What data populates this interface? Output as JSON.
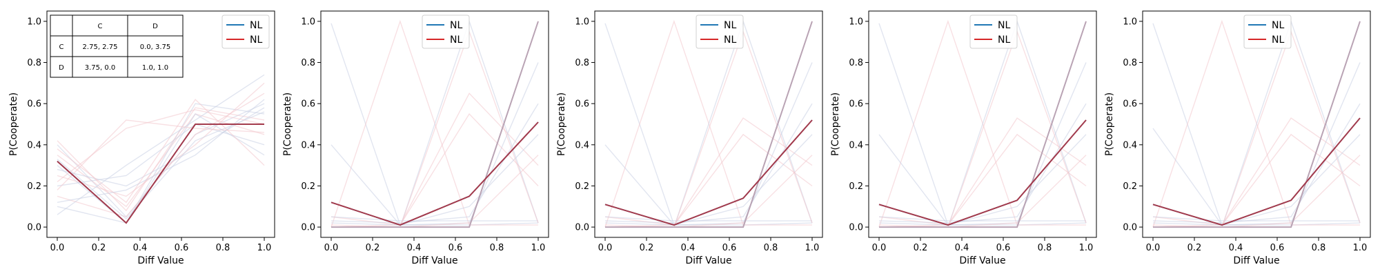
{
  "figure": {
    "xlabel": "Diff Value",
    "ylabel": "P(Cooperate)"
  },
  "colors": {
    "blue": "#1f77b4",
    "red": "#d62728",
    "mix": "#a33a4c",
    "faint_blue": "#c9cfe3",
    "faint_red": "#f2c6cc"
  },
  "payoff_table": {
    "col_headers": [
      "C",
      "D"
    ],
    "rows": [
      {
        "label": "C",
        "cells": [
          "2.75, 2.75",
          "0.0, 3.75"
        ]
      },
      {
        "label": "D",
        "cells": [
          "3.75, 0.0",
          "1.0, 1.0"
        ]
      }
    ]
  },
  "chart_data": [
    {
      "type": "line",
      "xlabel": "Diff Value",
      "ylabel": "P(Cooperate)",
      "xlim": [
        -0.05,
        1.05
      ],
      "ylim": [
        -0.05,
        1.05
      ],
      "xticks": [
        "0.0",
        "0.2",
        "0.4",
        "0.6",
        "0.8",
        "1.0"
      ],
      "yticks": [
        "0.0",
        "0.2",
        "0.4",
        "0.6",
        "0.8",
        "1.0"
      ],
      "legend": [
        "NL",
        "NL"
      ],
      "legend_position": "top-right",
      "x": [
        0.0,
        0.333,
        0.667,
        1.0
      ],
      "series": [
        {
          "name": "NL",
          "color": "blue",
          "values": [
            0.32,
            0.02,
            0.5,
            0.5
          ]
        },
        {
          "name": "NL",
          "color": "red",
          "values": [
            0.32,
            0.02,
            0.5,
            0.5
          ]
        }
      ],
      "faint_traces": [
        [
          0.4,
          0.05,
          0.45,
          0.6
        ],
        [
          0.35,
          0.1,
          0.55,
          0.45
        ],
        [
          0.3,
          0.02,
          0.6,
          0.55
        ],
        [
          0.25,
          0.15,
          0.4,
          0.7
        ],
        [
          0.2,
          0.25,
          0.5,
          0.4
        ],
        [
          0.15,
          0.05,
          0.45,
          0.65
        ],
        [
          0.1,
          0.02,
          0.55,
          0.35
        ],
        [
          0.42,
          0.08,
          0.58,
          0.52
        ],
        [
          0.28,
          0.2,
          0.38,
          0.58
        ],
        [
          0.18,
          0.52,
          0.48,
          0.46
        ],
        [
          0.06,
          0.3,
          0.52,
          0.74
        ],
        [
          0.38,
          0.12,
          0.62,
          0.3
        ],
        [
          0.33,
          0.04,
          0.42,
          0.56
        ],
        [
          0.22,
          0.48,
          0.57,
          0.5
        ],
        [
          0.12,
          0.18,
          0.35,
          0.62
        ]
      ]
    },
    {
      "type": "line",
      "xlabel": "Diff Value",
      "ylabel": "P(Cooperate)",
      "xlim": [
        -0.05,
        1.05
      ],
      "ylim": [
        -0.05,
        1.05
      ],
      "xticks": [
        "0.0",
        "0.2",
        "0.4",
        "0.6",
        "0.8",
        "1.0"
      ],
      "yticks": [
        "0.0",
        "0.2",
        "0.4",
        "0.6",
        "0.8",
        "1.0"
      ],
      "legend": [
        "NL",
        "NL"
      ],
      "legend_position": "top-center",
      "x": [
        0.0,
        0.333,
        0.667,
        1.0
      ],
      "series": [
        {
          "name": "NL",
          "color": "blue",
          "values": [
            0.12,
            0.01,
            0.15,
            0.51
          ]
        },
        {
          "name": "NL",
          "color": "red",
          "values": [
            0.12,
            0.01,
            0.15,
            0.51
          ]
        }
      ],
      "flat_series": [
        0.0,
        0.0,
        0.0,
        1.0
      ],
      "faint_traces": [
        [
          0.99,
          0.01,
          0.01,
          0.02
        ],
        [
          0.0,
          1.0,
          0.01,
          0.01
        ],
        [
          0.0,
          0.0,
          1.0,
          0.02
        ],
        [
          0.0,
          0.0,
          0.0,
          1.0
        ],
        [
          0.4,
          0.01,
          0.02,
          0.8
        ],
        [
          0.05,
          0.01,
          0.65,
          0.3
        ],
        [
          0.03,
          0.02,
          0.05,
          0.6
        ],
        [
          0.0,
          0.01,
          0.55,
          0.2
        ],
        [
          0.02,
          0.01,
          0.1,
          0.45
        ],
        [
          0.01,
          0.0,
          0.02,
          0.35
        ],
        [
          0.05,
          0.03,
          0.03,
          0.03
        ],
        [
          0.0,
          0.0,
          0.95,
          0.02
        ]
      ]
    },
    {
      "type": "line",
      "xlabel": "Diff Value",
      "ylabel": "P(Cooperate)",
      "xlim": [
        -0.05,
        1.05
      ],
      "ylim": [
        -0.05,
        1.05
      ],
      "xticks": [
        "0.0",
        "0.2",
        "0.4",
        "0.6",
        "0.8",
        "1.0"
      ],
      "yticks": [
        "0.0",
        "0.2",
        "0.4",
        "0.6",
        "0.8",
        "1.0"
      ],
      "legend": [
        "NL",
        "NL"
      ],
      "legend_position": "top-center",
      "x": [
        0.0,
        0.333,
        0.667,
        1.0
      ],
      "series": [
        {
          "name": "NL",
          "color": "blue",
          "values": [
            0.11,
            0.01,
            0.14,
            0.52
          ]
        },
        {
          "name": "NL",
          "color": "red",
          "values": [
            0.11,
            0.01,
            0.14,
            0.52
          ]
        }
      ],
      "flat_series": [
        0.0,
        0.0,
        0.0,
        1.0
      ],
      "faint_traces": [
        [
          0.99,
          0.01,
          0.01,
          0.02
        ],
        [
          0.0,
          1.0,
          0.01,
          0.01
        ],
        [
          0.0,
          0.0,
          1.0,
          0.02
        ],
        [
          0.0,
          0.0,
          0.0,
          1.0
        ],
        [
          0.4,
          0.01,
          0.02,
          0.8
        ],
        [
          0.05,
          0.01,
          0.53,
          0.3
        ],
        [
          0.03,
          0.02,
          0.05,
          0.6
        ],
        [
          0.0,
          0.01,
          0.45,
          0.2
        ],
        [
          0.02,
          0.01,
          0.1,
          0.45
        ],
        [
          0.01,
          0.0,
          0.02,
          0.35
        ],
        [
          0.05,
          0.03,
          0.03,
          0.03
        ],
        [
          0.0,
          0.0,
          0.95,
          0.02
        ]
      ]
    },
    {
      "type": "line",
      "xlabel": "Diff Value",
      "ylabel": "P(Cooperate)",
      "xlim": [
        -0.05,
        1.05
      ],
      "ylim": [
        -0.05,
        1.05
      ],
      "xticks": [
        "0.0",
        "0.2",
        "0.4",
        "0.6",
        "0.8",
        "1.0"
      ],
      "yticks": [
        "0.0",
        "0.2",
        "0.4",
        "0.6",
        "0.8",
        "1.0"
      ],
      "legend": [
        "NL",
        "NL"
      ],
      "legend_position": "top-center",
      "x": [
        0.0,
        0.333,
        0.667,
        1.0
      ],
      "series": [
        {
          "name": "NL",
          "color": "blue",
          "values": [
            0.11,
            0.01,
            0.13,
            0.52
          ]
        },
        {
          "name": "NL",
          "color": "red",
          "values": [
            0.11,
            0.01,
            0.13,
            0.52
          ]
        }
      ],
      "flat_series": [
        0.0,
        0.0,
        0.0,
        1.0
      ],
      "faint_traces": [
        [
          0.99,
          0.01,
          0.01,
          0.02
        ],
        [
          0.0,
          1.0,
          0.01,
          0.01
        ],
        [
          0.0,
          0.0,
          1.0,
          0.02
        ],
        [
          0.0,
          0.0,
          0.0,
          1.0
        ],
        [
          0.45,
          0.01,
          0.02,
          0.8
        ],
        [
          0.05,
          0.01,
          0.53,
          0.3
        ],
        [
          0.03,
          0.02,
          0.05,
          0.6
        ],
        [
          0.0,
          0.01,
          0.45,
          0.2
        ],
        [
          0.02,
          0.01,
          0.1,
          0.45
        ],
        [
          0.01,
          0.0,
          0.02,
          0.35
        ],
        [
          0.05,
          0.03,
          0.03,
          0.03
        ],
        [
          0.0,
          0.0,
          0.95,
          0.02
        ]
      ]
    },
    {
      "type": "line",
      "xlabel": "Diff Value",
      "ylabel": "P(Cooperate)",
      "xlim": [
        -0.05,
        1.05
      ],
      "ylim": [
        -0.05,
        1.05
      ],
      "xticks": [
        "0.0",
        "0.2",
        "0.4",
        "0.6",
        "0.8",
        "1.0"
      ],
      "yticks": [
        "0.0",
        "0.2",
        "0.4",
        "0.6",
        "0.8",
        "1.0"
      ],
      "legend": [
        "NL",
        "NL"
      ],
      "legend_position": "top-center",
      "x": [
        0.0,
        0.333,
        0.667,
        1.0
      ],
      "series": [
        {
          "name": "NL",
          "color": "blue",
          "values": [
            0.11,
            0.01,
            0.13,
            0.53
          ]
        },
        {
          "name": "NL",
          "color": "red",
          "values": [
            0.11,
            0.01,
            0.13,
            0.53
          ]
        }
      ],
      "flat_series": [
        0.0,
        0.0,
        0.0,
        1.0
      ],
      "faint_traces": [
        [
          0.99,
          0.01,
          0.01,
          0.02
        ],
        [
          0.0,
          1.0,
          0.01,
          0.01
        ],
        [
          0.0,
          0.0,
          1.0,
          0.02
        ],
        [
          0.0,
          0.0,
          0.0,
          1.0
        ],
        [
          0.48,
          0.01,
          0.02,
          0.8
        ],
        [
          0.05,
          0.01,
          0.53,
          0.3
        ],
        [
          0.03,
          0.02,
          0.05,
          0.6
        ],
        [
          0.0,
          0.01,
          0.45,
          0.2
        ],
        [
          0.02,
          0.01,
          0.1,
          0.45
        ],
        [
          0.01,
          0.0,
          0.02,
          0.35
        ],
        [
          0.05,
          0.03,
          0.03,
          0.03
        ],
        [
          0.0,
          0.0,
          0.95,
          0.02
        ]
      ]
    }
  ]
}
